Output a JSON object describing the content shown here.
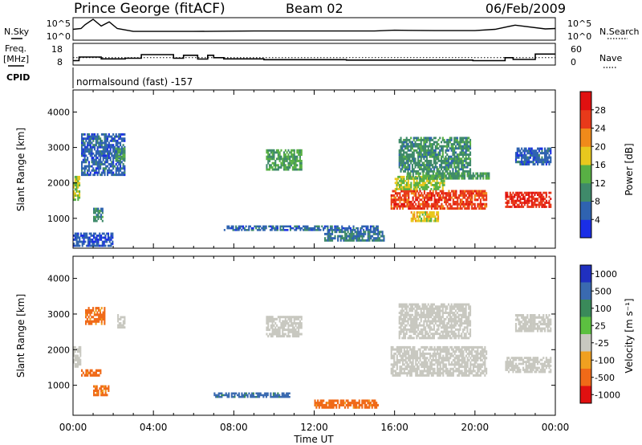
{
  "header": {
    "station": "Prince George (fitACF)",
    "beam": "Beam 02",
    "date": "06/Feb/2009"
  },
  "sky_panel": {
    "left_label": "N.Sky",
    "left_ticks": [
      "10^5",
      "10^0"
    ],
    "right_label": "N.Search",
    "right_ticks": [
      "10^5",
      "10^0"
    ]
  },
  "freq_panel": {
    "left_label_1": "Freq.",
    "left_label_2": "[MHz]",
    "left_ticks": [
      "18",
      "8"
    ],
    "right_label": "Nave",
    "right_ticks": [
      "60",
      "0"
    ]
  },
  "cpid": {
    "label": "CPID",
    "mode": "normalsound (fast) -157"
  },
  "time_axis": {
    "title": "Time UT",
    "ticks": [
      "00:00",
      "04:00",
      "08:00",
      "12:00",
      "16:00",
      "20:00",
      "00:00"
    ]
  },
  "power_panel": {
    "ylabel": "Slant Range [km]",
    "y_ticks": [
      "1000",
      "2000",
      "3000",
      "4000"
    ],
    "colorbar_label": "Power [dB]",
    "colorbar_ticks": [
      "4",
      "8",
      "12",
      "16",
      "20",
      "24",
      "28"
    ],
    "colors": [
      "#1a2ee6",
      "#2f63b0",
      "#3f8a6a",
      "#58b044",
      "#e8c81e",
      "#f08a1a",
      "#e83a1a",
      "#e01010"
    ]
  },
  "velocity_panel": {
    "ylabel": "Slant Range [km]",
    "y_ticks": [
      "1000",
      "2000",
      "3000",
      "4000"
    ],
    "colorbar_label": "Velocity [m s⁻¹]",
    "colorbar_ticks": [
      "1000",
      "500",
      "100",
      "25",
      "-25",
      "-100",
      "-500",
      "-1000"
    ],
    "colors": [
      "#2030c0",
      "#3a6ab0",
      "#3a8a5a",
      "#5cc040",
      "#c8c8c0",
      "#f0a020",
      "#f06a18",
      "#e01010"
    ]
  },
  "chart_data": [
    {
      "type": "line",
      "title": "N.Sky / N.Search",
      "x_range_hours": [
        0,
        24
      ],
      "ylim_log10": [
        0,
        5
      ],
      "series": [
        {
          "name": "N.Sky",
          "x": [
            0,
            0.4,
            0.6,
            1.0,
            1.4,
            1.8,
            2.2,
            3,
            6,
            9,
            12,
            15,
            16,
            18,
            20,
            21,
            22,
            23.5,
            24
          ],
          "y": [
            2.4,
            2.6,
            3.5,
            4.8,
            3.2,
            4.2,
            2.6,
            1.9,
            1.9,
            2.0,
            2.0,
            2.0,
            2.2,
            2.1,
            2.1,
            2.4,
            3.4,
            2.5,
            2.6
          ]
        }
      ]
    },
    {
      "type": "line",
      "title": "Freq. / Nave",
      "x_range_hours": [
        0,
        24
      ],
      "ylim": [
        8,
        18
      ],
      "series": [
        {
          "name": "Freq.",
          "x": [
            0,
            0.3,
            0.3,
            1.4,
            1.4,
            2.6,
            2.6,
            3.4,
            3.4,
            5.0,
            5.0,
            5.5,
            5.5,
            6.2,
            6.2,
            6.7,
            6.7,
            7.0,
            7.0,
            7.5,
            7.5,
            9.5,
            9.5,
            13.6,
            13.6,
            19.9,
            19.9,
            21.5,
            21.5,
            21.9,
            21.9,
            23.0,
            23.0,
            24
          ],
          "y": [
            11,
            11,
            14,
            14,
            12.5,
            12.5,
            13,
            13,
            16,
            16,
            13,
            13,
            15.5,
            15.5,
            12.3,
            12.3,
            15.5,
            15.5,
            13.5,
            13.5,
            12.5,
            12.5,
            11.8,
            11.8,
            11.5,
            11.5,
            11.0,
            11.0,
            13.5,
            13.5,
            12.0,
            12.0,
            16.5,
            16.5
          ]
        },
        {
          "name": "Nave",
          "x": [
            0,
            24
          ],
          "y": [
            13.5,
            13.5
          ]
        }
      ]
    },
    {
      "type": "heatmap",
      "title": "Power",
      "x_range_hours": [
        0,
        24
      ],
      "ylim_km": [
        180,
        4600
      ],
      "colorbar_dB": [
        0,
        32
      ],
      "regions": [
        {
          "t": [
            0.0,
            0.35
          ],
          "r": [
            1500,
            2200
          ],
          "value": 16
        },
        {
          "t": [
            0.4,
            2.6
          ],
          "r": [
            2200,
            3400
          ],
          "value": 6
        },
        {
          "t": [
            1.0,
            1.5
          ],
          "r": [
            900,
            1300
          ],
          "value": 10
        },
        {
          "t": [
            2.1,
            2.6
          ],
          "r": [
            2600,
            3000
          ],
          "value": 12
        },
        {
          "t": [
            0.0,
            2.0
          ],
          "r": [
            200,
            600
          ],
          "value": 5
        },
        {
          "t": [
            9.6,
            11.4
          ],
          "r": [
            2350,
            2950
          ],
          "value": 12
        },
        {
          "t": [
            7.5,
            15.2
          ],
          "r": [
            650,
            800
          ],
          "value": 6
        },
        {
          "t": [
            12.5,
            15.5
          ],
          "r": [
            350,
            650
          ],
          "value": 8
        },
        {
          "t": [
            15.8,
            20.6
          ],
          "r": [
            1250,
            1800
          ],
          "value": 26
        },
        {
          "t": [
            16.0,
            18.5
          ],
          "r": [
            1800,
            2200
          ],
          "value": 16
        },
        {
          "t": [
            21.5,
            23.8
          ],
          "r": [
            1300,
            1750
          ],
          "value": 27
        },
        {
          "t": [
            16.2,
            19.8
          ],
          "r": [
            2300,
            3300
          ],
          "value": 10
        },
        {
          "t": [
            16.6,
            20.8
          ],
          "r": [
            2100,
            2300
          ],
          "value": 12
        },
        {
          "t": [
            22.0,
            23.8
          ],
          "r": [
            2500,
            3000
          ],
          "value": 6
        },
        {
          "t": [
            16.8,
            18.2
          ],
          "r": [
            900,
            1200
          ],
          "value": 18
        }
      ]
    },
    {
      "type": "heatmap",
      "title": "Velocity",
      "x_range_hours": [
        0,
        24
      ],
      "ylim_km": [
        180,
        4600
      ],
      "colorbar_m_s": [
        -1000,
        1000
      ],
      "regions": [
        {
          "t": [
            0.0,
            0.4
          ],
          "r": [
            1500,
            2100
          ],
          "value": 0
        },
        {
          "t": [
            0.4,
            1.4
          ],
          "r": [
            1250,
            1450
          ],
          "value": -150
        },
        {
          "t": [
            1.0,
            1.8
          ],
          "r": [
            700,
            1000
          ],
          "value": -150
        },
        {
          "t": [
            0.6,
            1.6
          ],
          "r": [
            2700,
            3200
          ],
          "value": -150
        },
        {
          "t": [
            2.2,
            2.6
          ],
          "r": [
            2600,
            3000
          ],
          "value": 0
        },
        {
          "t": [
            9.6,
            11.4
          ],
          "r": [
            2350,
            2950
          ],
          "value": 0
        },
        {
          "t": [
            7.0,
            10.8
          ],
          "r": [
            650,
            800
          ],
          "value": 150
        },
        {
          "t": [
            12.0,
            15.2
          ],
          "r": [
            350,
            600
          ],
          "value": -150
        },
        {
          "t": [
            15.8,
            20.6
          ],
          "r": [
            1250,
            2100
          ],
          "value": 0
        },
        {
          "t": [
            21.5,
            23.8
          ],
          "r": [
            1350,
            1800
          ],
          "value": 0
        },
        {
          "t": [
            16.2,
            19.8
          ],
          "r": [
            2300,
            3300
          ],
          "value": 0
        },
        {
          "t": [
            22.0,
            23.8
          ],
          "r": [
            2500,
            3000
          ],
          "value": 0
        }
      ]
    }
  ]
}
